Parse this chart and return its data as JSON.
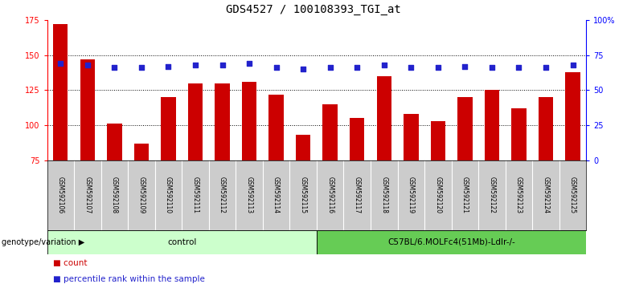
{
  "title": "GDS4527 / 100108393_TGI_at",
  "samples": [
    "GSM592106",
    "GSM592107",
    "GSM592108",
    "GSM592109",
    "GSM592110",
    "GSM592111",
    "GSM592112",
    "GSM592113",
    "GSM592114",
    "GSM592115",
    "GSM592116",
    "GSM592117",
    "GSM592118",
    "GSM592119",
    "GSM592120",
    "GSM592121",
    "GSM592122",
    "GSM592123",
    "GSM592124",
    "GSM592125"
  ],
  "counts": [
    172,
    147,
    101,
    87,
    120,
    130,
    130,
    131,
    122,
    93,
    115,
    105,
    135,
    108,
    103,
    120,
    125,
    112,
    120,
    138
  ],
  "percentile_ranks": [
    69,
    68,
    66,
    66,
    67,
    68,
    68,
    69,
    66,
    65,
    66,
    66,
    68,
    66,
    66,
    67,
    66,
    66,
    66,
    68
  ],
  "bar_color": "#cc0000",
  "dot_color": "#2222cc",
  "ylim_left": [
    75,
    175
  ],
  "ylim_right": [
    0,
    100
  ],
  "yticks_left": [
    75,
    100,
    125,
    150,
    175
  ],
  "yticks_right": [
    0,
    25,
    50,
    75,
    100
  ],
  "yticklabels_right": [
    "0",
    "25",
    "50",
    "75",
    "100%"
  ],
  "grid_levels": [
    100,
    125,
    150
  ],
  "control_label": "control",
  "treatment_label": "C57BL/6.MOLFc4(51Mb)-Ldlr-/-",
  "control_count": 10,
  "treatment_count": 10,
  "genotype_label": "genotype/variation",
  "legend_count_label": "count",
  "legend_percentile_label": "percentile rank within the sample",
  "control_color": "#ccffcc",
  "treatment_color": "#66cc55",
  "header_bg": "#cccccc",
  "title_fontsize": 10,
  "tick_fontsize": 7,
  "label_fontsize": 7
}
